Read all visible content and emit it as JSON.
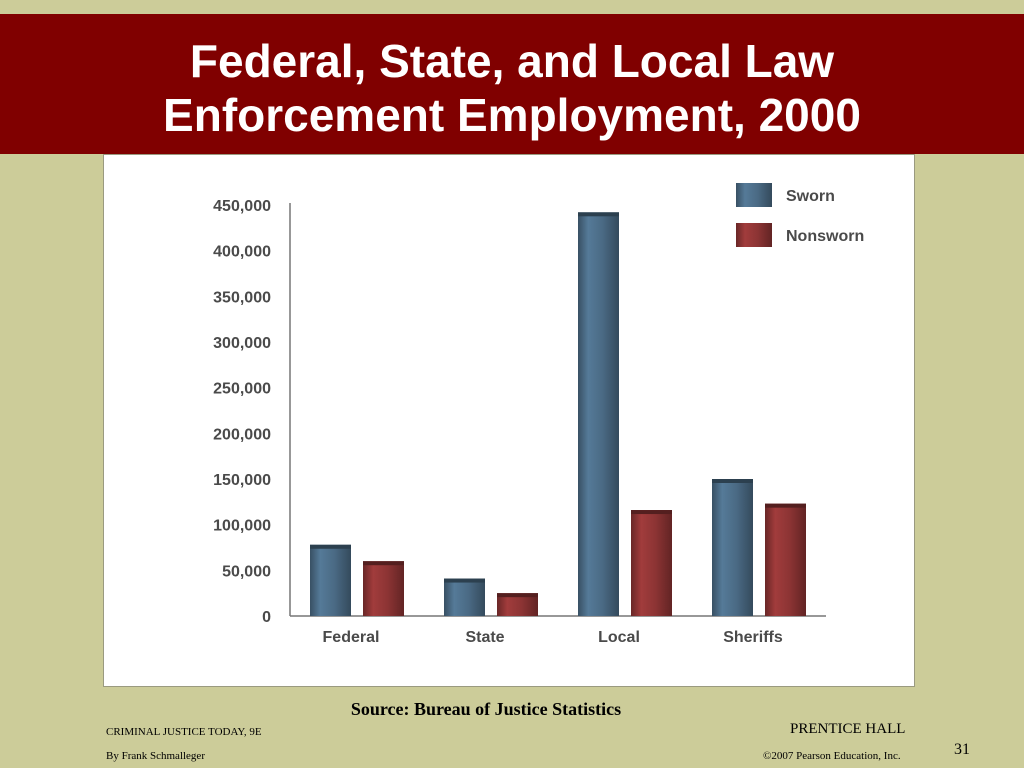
{
  "slide": {
    "title_line1": "Federal, State, and Local Law",
    "title_line2": "Enforcement Employment, 2000",
    "source": "Source: Bureau of Justice Statistics",
    "footer": {
      "book": "CRIMINAL JUSTICE TODAY, 9E",
      "author": "By Frank Schmalleger",
      "publisher": "PRENTICE HALL",
      "copyright": "©2007 Pearson Education, Inc.",
      "page_number": "31"
    },
    "colors": {
      "title_bar": "#800000",
      "background": "#cccc99",
      "sworn": "#4a6a84",
      "nonsworn": "#8c3434"
    }
  },
  "chart_data": {
    "type": "bar",
    "title": "",
    "xlabel": "",
    "ylabel": "",
    "categories": [
      "Federal",
      "State",
      "Local",
      "Sheriffs"
    ],
    "series": [
      {
        "name": "Sworn",
        "color": "#4a6a84",
        "values": [
          78000,
          41000,
          442000,
          150000
        ]
      },
      {
        "name": "Nonsworn",
        "color": "#8c3434",
        "values": [
          60000,
          25000,
          116000,
          123000
        ]
      }
    ],
    "ylim": [
      0,
      450000
    ],
    "yticks": [
      0,
      50000,
      100000,
      150000,
      200000,
      250000,
      300000,
      350000,
      400000,
      450000
    ],
    "ytick_labels": [
      "0",
      "50,000",
      "100,000",
      "150,000",
      "200,000",
      "250,000",
      "300,000",
      "350,000",
      "400,000",
      "450,000"
    ],
    "grid": false,
    "legend_position": "top-right"
  }
}
